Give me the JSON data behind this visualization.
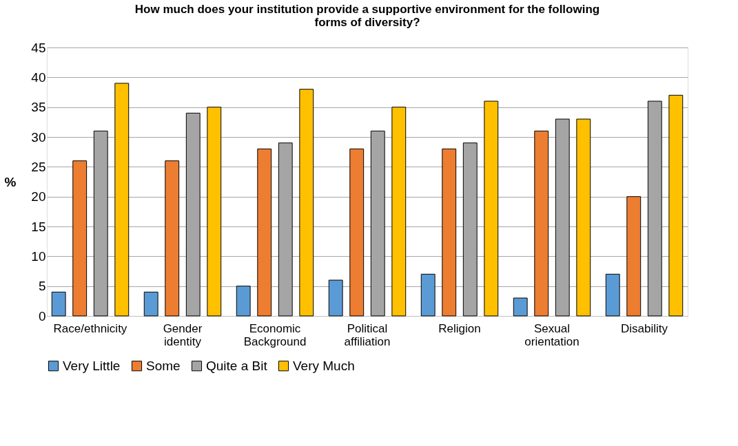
{
  "chart_data": {
    "type": "bar",
    "title": "How much does your institution provide a supportive environment for the following forms of diversity?",
    "ylabel": "%",
    "categories": [
      "Race/ethnicity",
      "Gender identity",
      "Economic Background",
      "Political affiliation",
      "Religion",
      "Sexual orientation",
      "Disability"
    ],
    "series": [
      {
        "name": "Very Little",
        "color": "#5b9bd5",
        "values": [
          4,
          4,
          5,
          6,
          7,
          3,
          7
        ]
      },
      {
        "name": "Some",
        "color": "#ed7d31",
        "values": [
          26,
          26,
          28,
          28,
          28,
          31,
          20
        ]
      },
      {
        "name": "Quite a Bit",
        "color": "#a5a5a5",
        "values": [
          31,
          34,
          29,
          31,
          29,
          33,
          36
        ]
      },
      {
        "name": "Very Much",
        "color": "#ffc000",
        "values": [
          39,
          35,
          38,
          35,
          36,
          33,
          37
        ]
      }
    ],
    "ylim": [
      0,
      45
    ],
    "yticks": [
      0,
      5,
      10,
      15,
      20,
      25,
      30,
      35,
      40,
      45
    ],
    "grid": "y",
    "legend": "bottom"
  }
}
